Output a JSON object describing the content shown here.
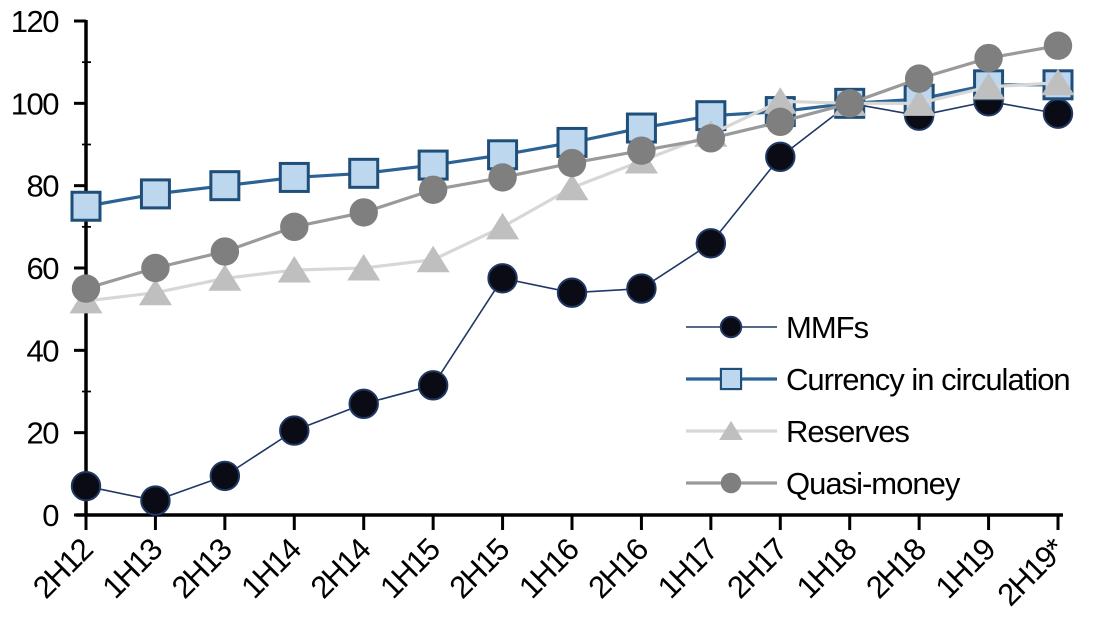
{
  "chart_data": {
    "type": "line",
    "title": "",
    "xlabel": "",
    "ylabel": "",
    "categories": [
      "2H12",
      "1H13",
      "2H13",
      "1H14",
      "2H14",
      "1H15",
      "2H15",
      "1H16",
      "2H16",
      "1H17",
      "2H17",
      "1H18",
      "2H18",
      "1H19",
      "2H19*"
    ],
    "series": [
      {
        "name": "MMFs",
        "marker": "circle",
        "marker_fill": "#0b0b15",
        "marker_stroke": "#1f3864",
        "line_color": "#1f3864",
        "line_width": 1.6,
        "values": [
          7,
          3.5,
          9.5,
          20.5,
          27,
          31.5,
          57.5,
          54,
          55,
          66,
          87,
          100,
          97,
          100.5,
          97.5
        ]
      },
      {
        "name": "Currency in circulation",
        "marker": "square",
        "marker_fill": "#bdd7ee",
        "marker_stroke": "#1f4e79",
        "line_color": "#2c6395",
        "line_width": 3.2,
        "values": [
          75,
          78,
          80,
          82,
          83,
          85,
          87.5,
          90.5,
          94,
          97,
          98,
          100,
          101,
          104.5,
          104.5
        ]
      },
      {
        "name": "Reserves",
        "marker": "triangle",
        "marker_fill": "#bfbfbf",
        "marker_stroke": "none",
        "line_color": "#d7d7d7",
        "line_width": 3.2,
        "values": [
          52,
          54,
          57.5,
          59.5,
          60,
          62,
          70,
          79.5,
          86,
          92.5,
          100.5,
          100,
          100,
          104,
          105
        ]
      },
      {
        "name": "Quasi-money",
        "marker": "circle",
        "marker_fill": "#7f7f7f",
        "marker_stroke": "none",
        "line_color": "#9a9a9a",
        "line_width": 3.2,
        "values": [
          55,
          60,
          64,
          70,
          73.5,
          79,
          82,
          85.5,
          88.5,
          91.5,
          95.5,
          100,
          106,
          111,
          114
        ]
      }
    ],
    "ylim": [
      0,
      120
    ],
    "ytick_step": 20,
    "y_minor_step": 10,
    "y_tick_labels": [
      "0",
      "20",
      "40",
      "60",
      "80",
      "100",
      "120"
    ],
    "grid": false,
    "legend_position": "inside-right",
    "x_tick_rotation": -45
  },
  "colors": {
    "axis": "#000000",
    "text": "#000000",
    "background": "#ffffff"
  }
}
